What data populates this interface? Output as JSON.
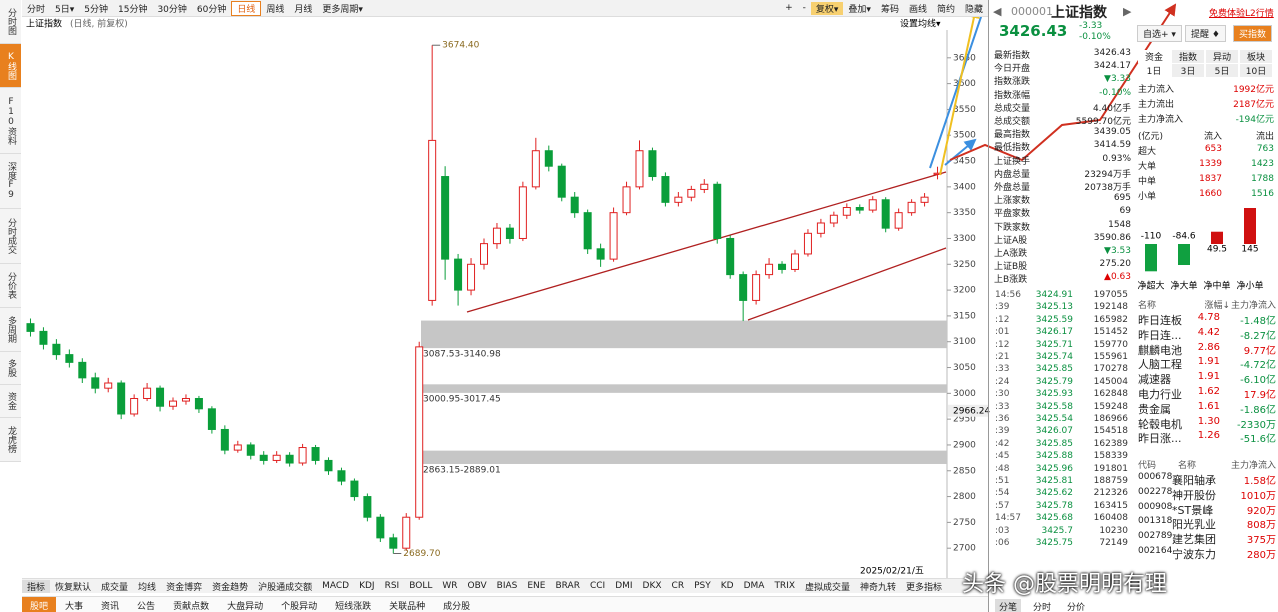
{
  "sidebar": [
    "分时图",
    "K线图",
    "F10资料",
    "深度F9",
    "分时成交",
    "分价表",
    "多周期",
    "多股",
    "资金",
    "龙虎榜"
  ],
  "toolbar": {
    "periods": [
      "分时",
      "5日▾",
      "5分钟",
      "15分钟",
      "30分钟",
      "60分钟",
      "日线",
      "周线",
      "月线",
      "更多周期▾"
    ],
    "tools": [
      "+",
      "-",
      "复权▾",
      "叠加▾",
      "筹码",
      "画线",
      "简约",
      "隐藏"
    ]
  },
  "chart": {
    "type": "candlestick",
    "title": "上证指数",
    "subtitle": "(日线, 前复权)",
    "ma_setting": "设置均线▾",
    "ylim": [
      2650,
      3700
    ],
    "yticks": [
      2700,
      2750,
      2800,
      2850,
      2900,
      2950,
      3000,
      3050,
      3100,
      3150,
      3200,
      3250,
      3300,
      3350,
      3400,
      3450,
      3500,
      3550,
      3600,
      3650
    ],
    "candles": [
      [
        3135,
        3145,
        3110,
        3120
      ],
      [
        3120,
        3128,
        3085,
        3095
      ],
      [
        3095,
        3105,
        3065,
        3075
      ],
      [
        3075,
        3085,
        3050,
        3060
      ],
      [
        3060,
        3068,
        3020,
        3030
      ],
      [
        3030,
        3040,
        3000,
        3010
      ],
      [
        3010,
        3030,
        3002,
        3020
      ],
      [
        3020,
        3025,
        2950,
        2960
      ],
      [
        2960,
        2998,
        2955,
        2990
      ],
      [
        2990,
        3020,
        2985,
        3010
      ],
      [
        3010,
        3015,
        2965,
        2975
      ],
      [
        2975,
        2992,
        2968,
        2985
      ],
      [
        2985,
        2998,
        2978,
        2990
      ],
      [
        2990,
        2995,
        2962,
        2970
      ],
      [
        2970,
        2975,
        2922,
        2930
      ],
      [
        2930,
        2938,
        2882,
        2890
      ],
      [
        2890,
        2908,
        2885,
        2900
      ],
      [
        2900,
        2905,
        2872,
        2880
      ],
      [
        2880,
        2888,
        2862,
        2870
      ],
      [
        2870,
        2888,
        2865,
        2880
      ],
      [
        2880,
        2886,
        2858,
        2865
      ],
      [
        2865,
        2902,
        2860,
        2895
      ],
      [
        2895,
        2900,
        2862,
        2870
      ],
      [
        2870,
        2876,
        2842,
        2850
      ],
      [
        2850,
        2856,
        2822,
        2830
      ],
      [
        2830,
        2835,
        2792,
        2800
      ],
      [
        2800,
        2806,
        2752,
        2760
      ],
      [
        2760,
        2766,
        2712,
        2720
      ],
      [
        2720,
        2728,
        2689.7,
        2700
      ],
      [
        2700,
        2768,
        2695,
        2760
      ],
      [
        2760,
        3100,
        2755,
        3090
      ],
      [
        3180,
        3674.4,
        3170,
        3490
      ],
      [
        3420,
        3440,
        3220,
        3260
      ],
      [
        3260,
        3270,
        3170,
        3200
      ],
      [
        3200,
        3262,
        3190,
        3250
      ],
      [
        3250,
        3300,
        3240,
        3290
      ],
      [
        3290,
        3330,
        3280,
        3320
      ],
      [
        3320,
        3328,
        3290,
        3300
      ],
      [
        3300,
        3410,
        3295,
        3400
      ],
      [
        3400,
        3495,
        3395,
        3470
      ],
      [
        3470,
        3480,
        3430,
        3440
      ],
      [
        3440,
        3445,
        3372,
        3380
      ],
      [
        3380,
        3390,
        3340,
        3350
      ],
      [
        3350,
        3356,
        3270,
        3280
      ],
      [
        3280,
        3290,
        3245,
        3260
      ],
      [
        3260,
        3360,
        3255,
        3350
      ],
      [
        3350,
        3410,
        3345,
        3400
      ],
      [
        3400,
        3490,
        3395,
        3470
      ],
      [
        3470,
        3476,
        3412,
        3420
      ],
      [
        3420,
        3428,
        3362,
        3370
      ],
      [
        3370,
        3390,
        3362,
        3380
      ],
      [
        3380,
        3402,
        3372,
        3395
      ],
      [
        3395,
        3415,
        3388,
        3405
      ],
      [
        3405,
        3410,
        3290,
        3300
      ],
      [
        3300,
        3306,
        3222,
        3230
      ],
      [
        3230,
        3236,
        3140,
        3180
      ],
      [
        3180,
        3238,
        3172,
        3230
      ],
      [
        3230,
        3262,
        3222,
        3250
      ],
      [
        3250,
        3256,
        3232,
        3240
      ],
      [
        3240,
        3278,
        3235,
        3270
      ],
      [
        3270,
        3318,
        3265,
        3310
      ],
      [
        3310,
        3338,
        3302,
        3330
      ],
      [
        3330,
        3352,
        3322,
        3345
      ],
      [
        3345,
        3368,
        3338,
        3360
      ],
      [
        3360,
        3366,
        3348,
        3355
      ],
      [
        3355,
        3382,
        3350,
        3375
      ],
      [
        3375,
        3380,
        3312,
        3320
      ],
      [
        3320,
        3358,
        3315,
        3350
      ],
      [
        3350,
        3376,
        3344,
        3370
      ],
      [
        3370,
        3388,
        3362,
        3380
      ],
      [
        3424.17,
        3439.05,
        3414.59,
        3426.43
      ]
    ],
    "high": {
      "value": 3674.4,
      "label": "3674.40"
    },
    "low": {
      "value": 2689.7,
      "label": "2689.70"
    },
    "marker": 2966.24,
    "date": "2025/02/21/五",
    "gaps": [
      {
        "low": 3087.53,
        "high": 3140.98,
        "label": "3087.53-3140.98"
      },
      {
        "low": 3000.95,
        "high": 3017.45,
        "label": "3000.95-3017.45"
      },
      {
        "low": 2863.15,
        "high": 2889.01,
        "label": "2863.15-2889.01"
      }
    ]
  },
  "indicators": [
    "指标",
    "恢复默认",
    "成交量",
    "均线",
    "资金博弈",
    "资金趋势",
    "沪股通成交额",
    "MACD",
    "KDJ",
    "RSI",
    "BOLL",
    "WR",
    "OBV",
    "BIAS",
    "ENE",
    "BRAR",
    "CCI",
    "DMI",
    "DKX",
    "CR",
    "PSY",
    "KD",
    "DMA",
    "TRIX",
    "虚拟成交量",
    "神奇九转",
    "更多指标"
  ],
  "bottom_tabs": [
    "股吧",
    "大事",
    "资讯",
    "公告",
    "贡献点数",
    "大盘异动",
    "个股异动",
    "短线涨跌",
    "关联品种",
    "成分股"
  ],
  "quote": {
    "code": "000001",
    "name": "上证指数",
    "price": 3426.43,
    "change": "-3.33",
    "pct": "-0.10%",
    "l2": "免费体验L2行情",
    "buttons": [
      "自选+ ▾",
      "提醒 ♦",
      "买指数"
    ]
  },
  "stats": [
    [
      "最新指数",
      3426.43
    ],
    [
      "今日开盘",
      3424.17
    ],
    [
      "指数涨跌",
      "▼3.33"
    ],
    [
      "指数涨幅",
      "-0.10%"
    ],
    [
      "总成交量",
      "4.40亿手"
    ],
    [
      "总成交额",
      "5599.70亿元"
    ],
    [
      "最高指数",
      3439.05
    ],
    [
      "最低指数",
      3414.59
    ],
    [
      "上证换手",
      "0.93%"
    ],
    [
      "内盘总量",
      "23294万手"
    ],
    [
      "外盘总量",
      "20738万手"
    ],
    [
      "上涨家数",
      695
    ],
    [
      "平盘家数",
      69
    ],
    [
      "下跌家数",
      1548
    ],
    [
      "上证A股",
      3590.86
    ],
    [
      "上A涨跌",
      "▼3.53"
    ],
    [
      "上证B股",
      "275.20"
    ],
    [
      "上B涨跌",
      "▲0.63"
    ]
  ],
  "ticks": [
    [
      "14:56",
      3424.91,
      197055
    ],
    [
      ":39",
      3425.13,
      192148
    ],
    [
      ":12",
      3425.59,
      165982
    ],
    [
      ":01",
      3426.17,
      151452
    ],
    [
      ":12",
      3425.71,
      159770
    ],
    [
      ":21",
      3425.74,
      155961
    ],
    [
      ":33",
      3425.85,
      170278
    ],
    [
      ":24",
      3425.79,
      145004
    ],
    [
      ":30",
      3425.93,
      162848
    ],
    [
      ":33",
      3425.58,
      159248
    ],
    [
      ":36",
      3425.54,
      186966
    ],
    [
      ":39",
      3426.07,
      154518
    ],
    [
      ":42",
      3425.85,
      162389
    ],
    [
      ":45",
      3425.88,
      158339
    ],
    [
      ":48",
      3425.96,
      191801
    ],
    [
      ":51",
      3425.81,
      188759
    ],
    [
      ":54",
      3425.62,
      212326
    ],
    [
      ":57",
      3425.78,
      163415
    ],
    [
      "14:57",
      3425.68,
      160408
    ],
    [
      ":03",
      3425.7,
      10230
    ],
    [
      ":06",
      3425.75,
      72149
    ]
  ],
  "tick_tabs": [
    "分笔",
    "分时",
    "分价"
  ],
  "flow": {
    "tabs": [
      "资金",
      "指数",
      "异动",
      "板块"
    ],
    "periods": [
      "1日",
      "3日",
      "5日",
      "10日"
    ],
    "summary": [
      [
        "主力流入",
        "1992亿元"
      ],
      [
        "主力流出",
        "2187亿元"
      ],
      [
        "主力净流入",
        "-194亿元"
      ]
    ],
    "unit": "(亿元)",
    "headers": [
      "流入",
      "流出"
    ],
    "rows": [
      [
        "超大",
        653,
        763
      ],
      [
        "大单",
        1339,
        1423
      ],
      [
        "中单",
        1837,
        1788
      ],
      [
        "小单",
        1660,
        1516
      ]
    ],
    "net_values": [
      -110,
      -84.6,
      49.5,
      145
    ],
    "net_labels": [
      "净超大",
      "净大单",
      "净中单",
      "净小单"
    ]
  },
  "sectors": {
    "headers": [
      "名称",
      "涨幅↓",
      "主力净流入"
    ],
    "rows": [
      [
        "昨日连板",
        4.78,
        "-1.48亿"
      ],
      [
        "昨日连...",
        4.42,
        "-8.27亿"
      ],
      [
        "麒麟电池",
        2.86,
        "9.77亿"
      ],
      [
        "人脑工程",
        1.91,
        "-4.72亿"
      ],
      [
        "减速器",
        1.91,
        "-6.10亿"
      ],
      [
        "电力行业",
        1.62,
        "17.9亿"
      ],
      [
        "贵金属",
        1.61,
        "-1.86亿"
      ],
      [
        "轮毂电机",
        "1.30",
        "-2330万"
      ],
      [
        "昨日涨...",
        1.26,
        "-51.6亿"
      ]
    ]
  },
  "stocks": {
    "headers": [
      "代码",
      "名称",
      "主力净流入"
    ],
    "rows": [
      [
        "000678",
        "襄阳轴承",
        "1.58亿"
      ],
      [
        "002278",
        "神开股份",
        "1010万"
      ],
      [
        "000908",
        "*ST景峰",
        "920万"
      ],
      [
        "001318",
        "阳光乳业",
        "808万"
      ],
      [
        "002789",
        "建艺集团",
        "375万"
      ],
      [
        "002164",
        "宁波东力",
        "280万"
      ]
    ]
  },
  "watermark": "头条 @股票明明有理"
}
